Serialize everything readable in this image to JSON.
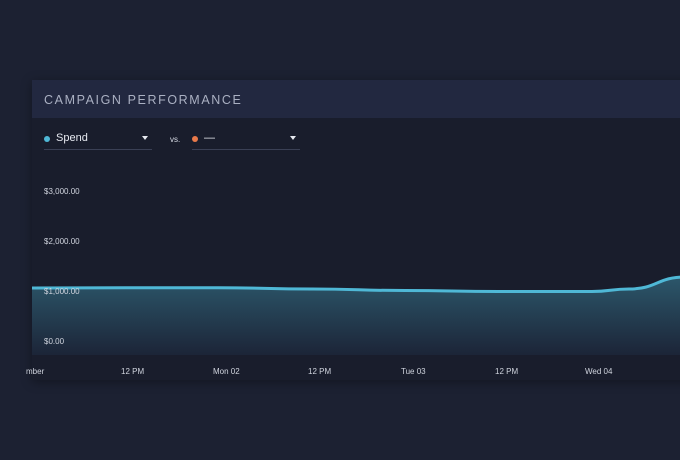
{
  "card": {
    "title": "CAMPAIGN PERFORMANCE"
  },
  "metric_primary": {
    "label": "Spend",
    "color": "#4fb8d6"
  },
  "comparison": {
    "separator": "vs.",
    "label": "—",
    "color": "#e8794a"
  },
  "chart_data": {
    "type": "area",
    "title": "",
    "xlabel": "",
    "ylabel": "",
    "y_ticks": [
      "$0.00",
      "$1,000.00",
      "$2,000.00",
      "$3,000.00"
    ],
    "y_tick_values": [
      0,
      1000,
      2000,
      3000
    ],
    "x_ticks": [
      "mber",
      "12 PM",
      "Mon 02",
      "12 PM",
      "Tue 03",
      "12 PM",
      "Wed 04"
    ],
    "ylim": [
      0,
      3500
    ],
    "grid": false,
    "series": [
      {
        "name": "Spend",
        "color": "#4fb8d6",
        "x": [
          0,
          0.5,
          1,
          1.5,
          2,
          2.5,
          3,
          3.2,
          3.5
        ],
        "values": [
          1180,
          1185,
          1185,
          1160,
          1130,
          1110,
          1110,
          1160,
          1400
        ]
      }
    ],
    "x_range": [
      0,
      3.5
    ]
  }
}
